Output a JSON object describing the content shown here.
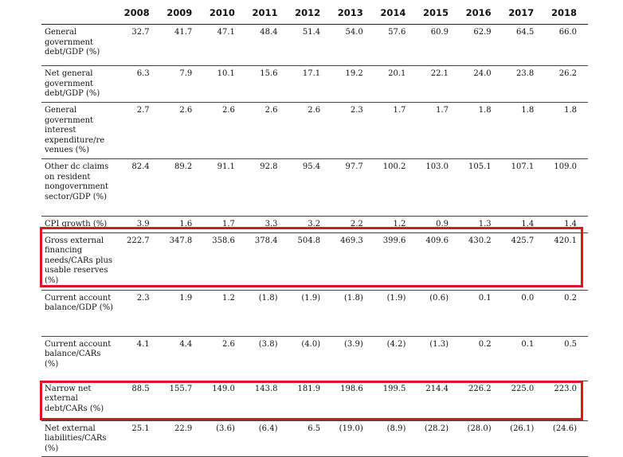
{
  "years": [
    "2008",
    "2009",
    "2010",
    "2011",
    "2012",
    "2013",
    "2014",
    "2015",
    "2016",
    "2017",
    "2018"
  ],
  "rows": [
    {
      "label": "General government debt/GDP (%)",
      "values": [
        "32.7",
        "41.7",
        "47.1",
        "48.4",
        "51.4",
        "54.0",
        "57.6",
        "60.9",
        "62.9",
        "64.5",
        "66.0"
      ]
    },
    {
      "label": "Net general government debt/GDP (%)",
      "values": [
        "6.3",
        "7.9",
        "10.1",
        "15.6",
        "17.1",
        "19.2",
        "20.1",
        "22.1",
        "24.0",
        "23.8",
        "26.2"
      ]
    },
    {
      "label": "General government interest expenditure/re venues (%)",
      "values": [
        "2.7",
        "2.6",
        "2.6",
        "2.6",
        "2.6",
        "2.3",
        "1.7",
        "1.7",
        "1.8",
        "1.8",
        "1.8"
      ]
    },
    {
      "label": "Other dc claims on resident nongovernment sector/GDP (%)",
      "values": [
        "82.4",
        "89.2",
        "91.1",
        "92.8",
        "95.4",
        "97.7",
        "100.2",
        "103.0",
        "105.1",
        "107.1",
        "109.0"
      ]
    },
    {
      "label": "CPI growth (%)",
      "values": [
        "3.9",
        "1.6",
        "1.7",
        "3.3",
        "3.2",
        "2.2",
        "1.2",
        "0.9",
        "1.3",
        "1.4",
        "1.4"
      ]
    },
    {
      "label": "Gross external financing needs/CARs plus usable reserves (%)",
      "values": [
        "222.7",
        "347.8",
        "358.6",
        "378.4",
        "504.8",
        "469.3",
        "399.6",
        "409.6",
        "430.2",
        "425.7",
        "420.1"
      ]
    },
    {
      "label": "Current account balance/GDP (%)",
      "values": [
        "2.3",
        "1.9",
        "1.2",
        "(1.8)",
        "(1.9)",
        "(1.8)",
        "(1.9)",
        "(0.6)",
        "0.1",
        "0.0",
        "0.2"
      ]
    },
    {
      "label": "Current account balance/CARs (%)",
      "values": [
        "4.1",
        "4.4",
        "2.6",
        "(3.8)",
        "(4.0)",
        "(3.9)",
        "(4.2)",
        "(1.3)",
        "0.2",
        "0.1",
        "0.5"
      ]
    },
    {
      "label": "Narrow net external debt/CARs (%)",
      "values": [
        "88.5",
        "155.7",
        "149.0",
        "143.8",
        "181.9",
        "198.6",
        "199.5",
        "214.4",
        "226.2",
        "225.0",
        "223.0"
      ]
    },
    {
      "label": "Net external liabilities/CARs (%)",
      "values": [
        "25.1",
        "22.9",
        "(3.6)",
        "(6.4)",
        "6.5",
        "(19.0)",
        "(8.9)",
        "(28.2)",
        "(28.0)",
        "(26.1)",
        "(24.6)"
      ]
    }
  ],
  "highlight_color": "#e0141e"
}
